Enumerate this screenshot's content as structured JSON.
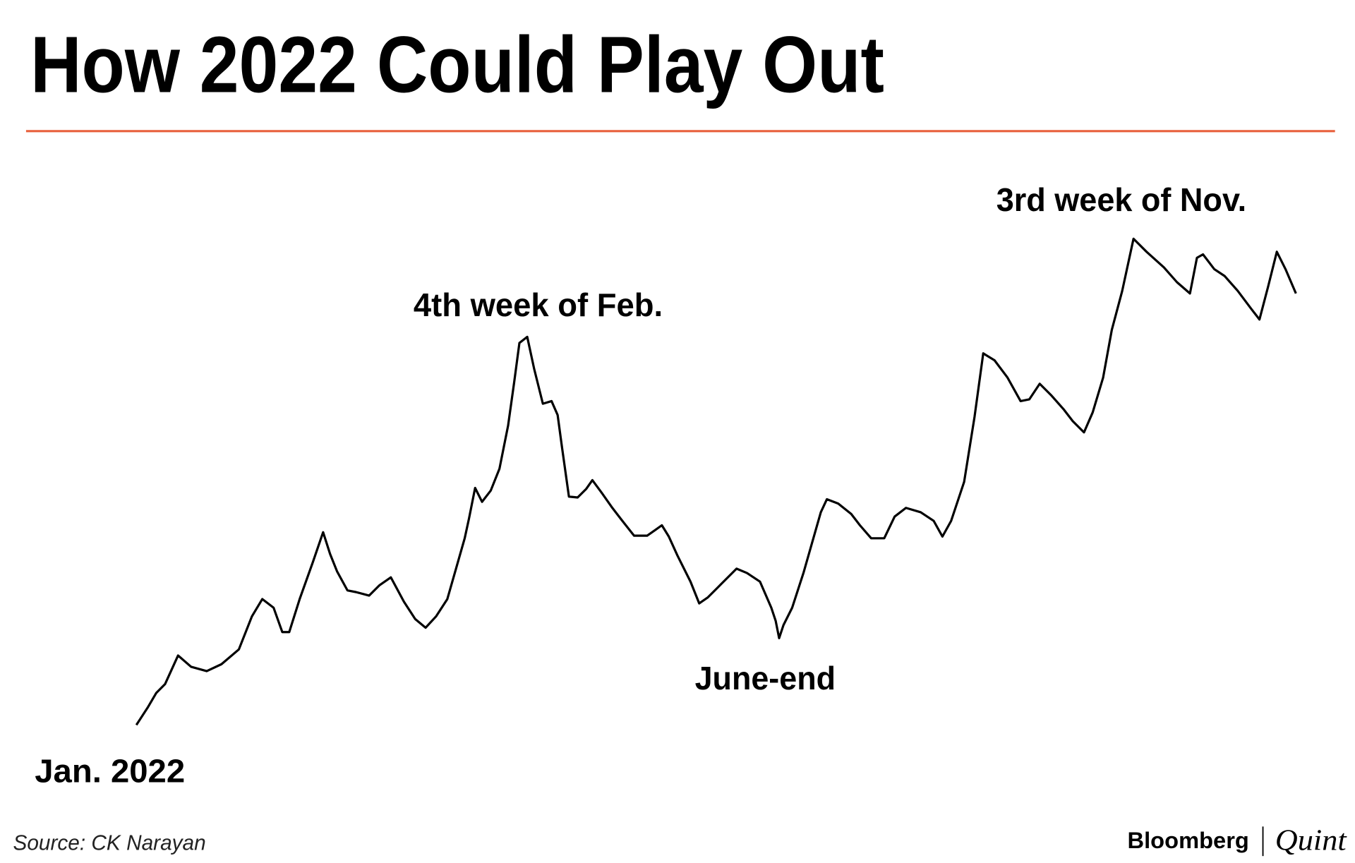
{
  "header": {
    "title": "How 2022 Could Play Out"
  },
  "annotations": {
    "start": "Jan. 2022",
    "peak_1": "4th week of Feb.",
    "trough": "June-end",
    "peak_2": "3rd week of Nov."
  },
  "footer": {
    "source": "Source: CK Narayan",
    "brand": "Bloomberg",
    "brand_suffix": "Quint"
  }
}
